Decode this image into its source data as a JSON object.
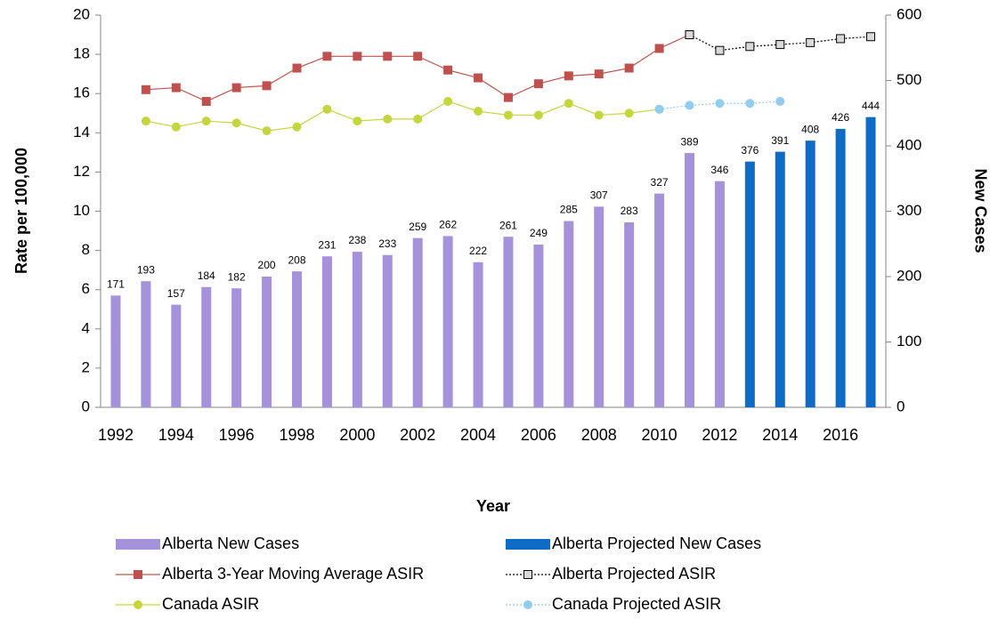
{
  "chart_data": {
    "type": "bar-line",
    "x_label": "Year",
    "y_label": "Rate per 100,000",
    "y2_label": "New Cases",
    "categories": [
      "1992",
      null,
      "1994",
      null,
      "1996",
      null,
      "1998",
      null,
      "2000",
      null,
      "2002",
      null,
      "2004",
      null,
      "2006",
      null,
      "2008",
      null,
      "2010",
      null,
      "2012",
      null,
      "2014",
      null,
      "2016",
      null
    ],
    "ylim": [
      0,
      20
    ],
    "yticks": [
      0,
      2,
      4,
      6,
      8,
      10,
      12,
      14,
      16,
      18,
      20
    ],
    "y2lim": [
      0,
      600
    ],
    "y2ticks": [
      0,
      100,
      200,
      300,
      400,
      500,
      600
    ],
    "legend": "bottom",
    "series": [
      {
        "name": "Alberta New Cases",
        "type": "bar",
        "axis": "y2",
        "color": "#a592da",
        "data_labels": true,
        "values": [
          171,
          193,
          157,
          184,
          182,
          200,
          208,
          231,
          238,
          233,
          259,
          262,
          222,
          261,
          249,
          285,
          307,
          283,
          327,
          389,
          346,
          null,
          null,
          null,
          null,
          null
        ]
      },
      {
        "name": "Alberta Projected New Cases",
        "type": "bar",
        "axis": "y2",
        "color": "#0f6cc6",
        "data_labels": true,
        "values": [
          null,
          null,
          null,
          null,
          null,
          null,
          null,
          null,
          null,
          null,
          null,
          null,
          null,
          null,
          null,
          null,
          null,
          null,
          null,
          null,
          null,
          376,
          391,
          408,
          426,
          444
        ]
      },
      {
        "name": "Alberta 3-Year Moving Average ASIR",
        "type": "line",
        "color": "#c0504d",
        "marker": "square",
        "marker_fill": "#c0504d",
        "dash": false,
        "values": [
          null,
          16.2,
          16.3,
          15.6,
          16.3,
          16.4,
          17.3,
          17.9,
          17.9,
          17.9,
          17.9,
          17.2,
          16.8,
          15.8,
          16.5,
          16.9,
          17.0,
          17.3,
          18.3,
          19.0,
          null,
          null,
          null,
          null,
          null,
          null
        ]
      },
      {
        "name": "Alberta Projected ASIR",
        "type": "line",
        "color": "#000000",
        "marker": "square",
        "marker_fill": "#d9d9d9",
        "dash": true,
        "values": [
          null,
          null,
          null,
          null,
          null,
          null,
          null,
          null,
          null,
          null,
          null,
          null,
          null,
          null,
          null,
          null,
          null,
          null,
          null,
          19.0,
          18.2,
          18.4,
          18.5,
          18.6,
          18.8,
          18.9
        ]
      },
      {
        "name": "Canada ASIR",
        "type": "line",
        "color": "#c4d63c",
        "marker": "circle",
        "marker_fill": "#c4d63c",
        "dash": false,
        "values": [
          null,
          14.6,
          14.3,
          14.6,
          14.5,
          14.1,
          14.3,
          15.2,
          14.6,
          14.7,
          14.7,
          15.6,
          15.1,
          14.9,
          14.9,
          15.5,
          14.9,
          15.0,
          15.2,
          null,
          null,
          null,
          null,
          null,
          null,
          null
        ]
      },
      {
        "name": "Canada Projected ASIR",
        "type": "line",
        "color": "#92cdf0",
        "marker": "circle",
        "marker_fill": "#92cdf0",
        "dash": true,
        "values": [
          null,
          null,
          null,
          null,
          null,
          null,
          null,
          null,
          null,
          null,
          null,
          null,
          null,
          null,
          null,
          null,
          null,
          null,
          15.2,
          15.4,
          15.5,
          15.5,
          15.6,
          null,
          null,
          null
        ]
      }
    ]
  }
}
